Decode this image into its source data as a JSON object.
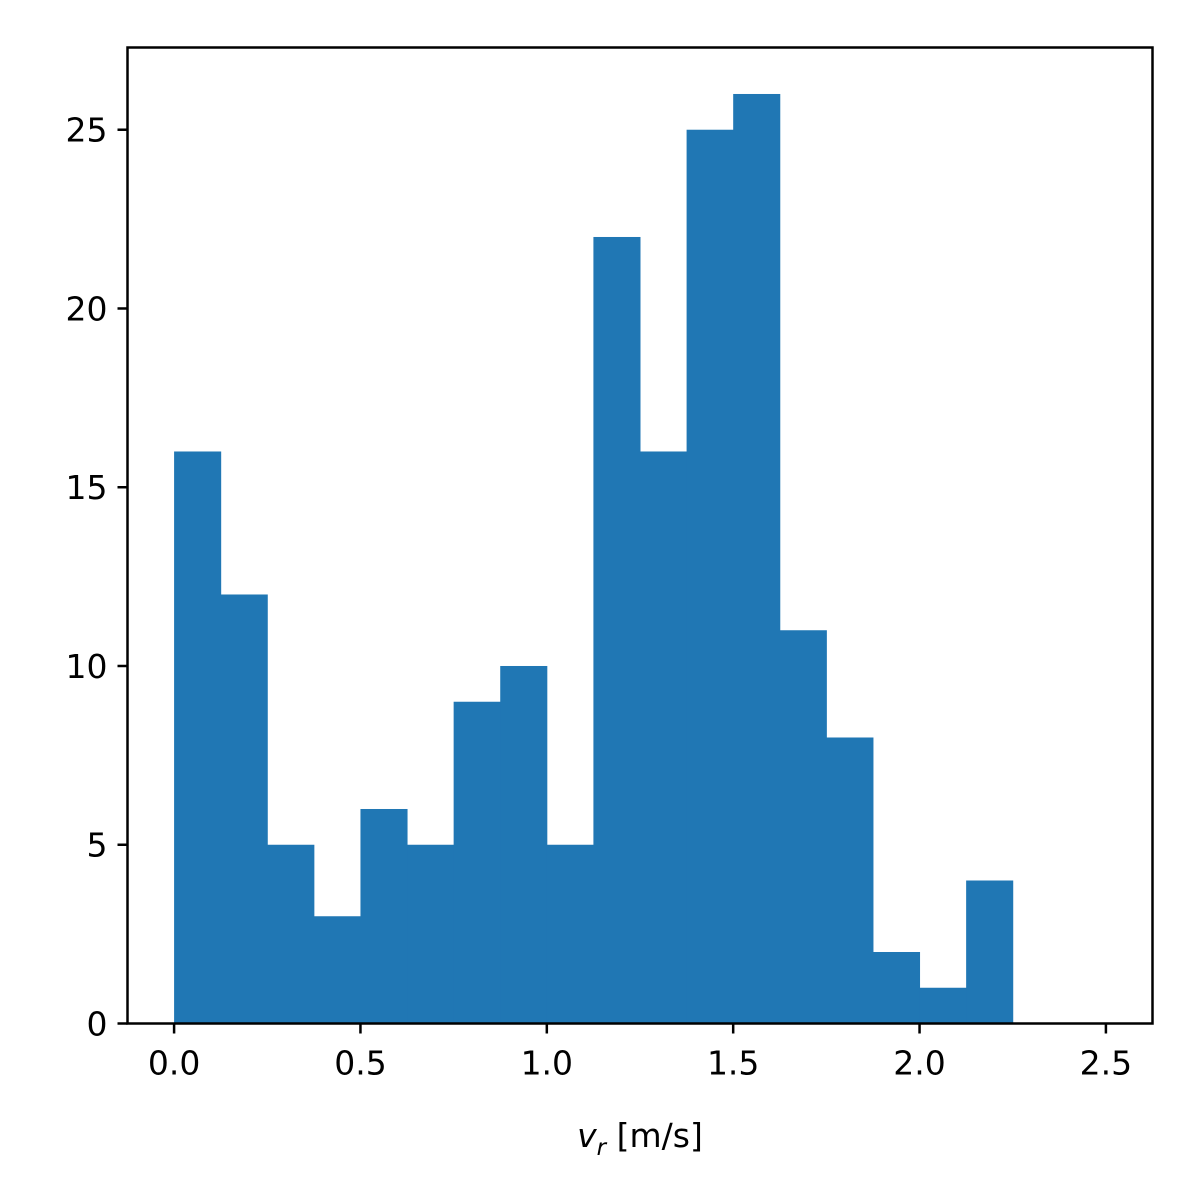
{
  "chart_data": {
    "type": "bar",
    "subtype": "histogram",
    "bin_edges": [
      0.0,
      0.125,
      0.25,
      0.375,
      0.5,
      0.625,
      0.75,
      0.875,
      1.0,
      1.125,
      1.25,
      1.375,
      1.5,
      1.625,
      1.75,
      1.875,
      2.0,
      2.125,
      2.25,
      2.375,
      2.5
    ],
    "values": [
      16,
      12,
      5,
      3,
      6,
      5,
      9,
      10,
      5,
      22,
      16,
      25,
      26,
      11,
      8,
      2,
      1,
      4,
      0,
      0
    ],
    "xlabel_var": "v",
    "xlabel_sub": "r",
    "xlabel_unit": " [m/s]",
    "xlim": [
      -0.125,
      2.625
    ],
    "ylim": [
      0,
      27.3
    ],
    "xticks": [
      0.0,
      0.5,
      1.0,
      1.5,
      2.0,
      2.5
    ],
    "xtick_labels": [
      "0.0",
      "0.5",
      "1.0",
      "1.5",
      "2.0",
      "2.5"
    ],
    "yticks": [
      0,
      5,
      10,
      15,
      20,
      25
    ],
    "ytick_labels": [
      "0",
      "5",
      "10",
      "15",
      "20",
      "25"
    ],
    "bar_color": "#2077b4",
    "grid": false
  }
}
